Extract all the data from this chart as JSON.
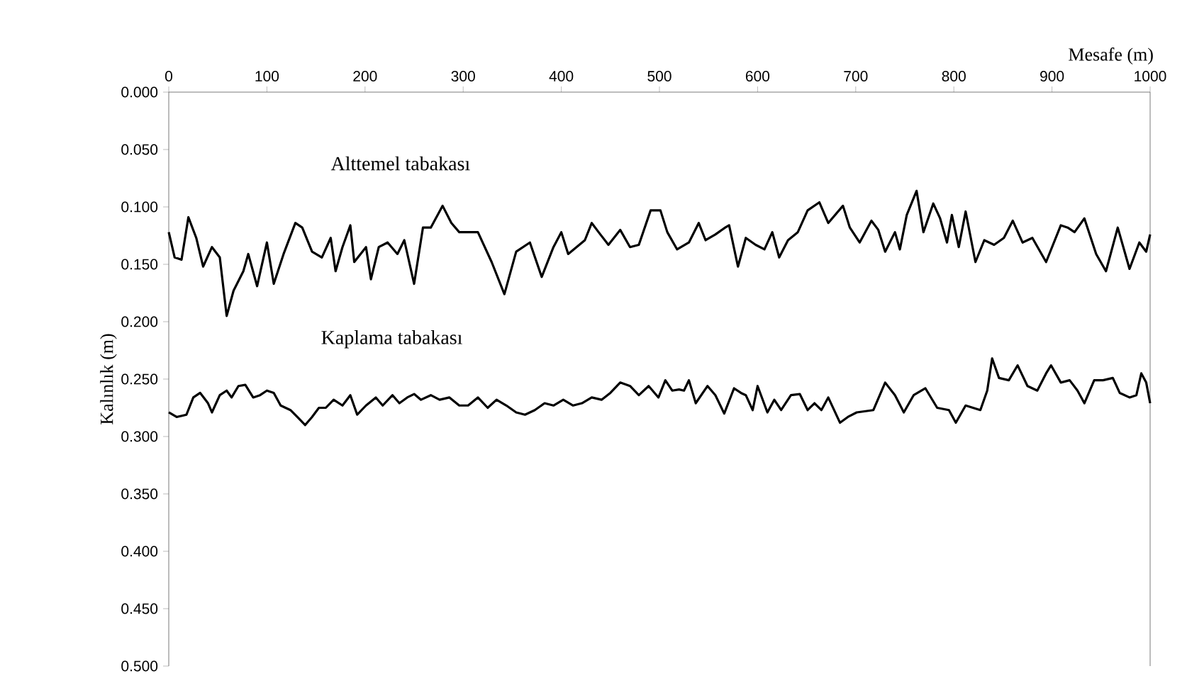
{
  "chart_data": {
    "type": "line",
    "xlabel": "Mesafe (m)",
    "ylabel": "Kalınlık (m)",
    "xlim": [
      0,
      1000
    ],
    "xticks": [
      0,
      100,
      200,
      300,
      400,
      500,
      600,
      700,
      800,
      900,
      1000
    ],
    "ylim": [
      0.5,
      0
    ],
    "yticks": [
      {
        "value": 0,
        "label": "0.000"
      },
      {
        "value": 0.05,
        "label": "0.050"
      },
      {
        "value": 0.1,
        "label": "0.100"
      },
      {
        "value": 0.15,
        "label": "0.150"
      },
      {
        "value": 0.2,
        "label": "0.200"
      },
      {
        "value": 0.25,
        "label": "0.250"
      },
      {
        "value": 0.3,
        "label": "0.300"
      },
      {
        "value": 0.35,
        "label": "0.350"
      },
      {
        "value": 0.4,
        "label": "0.400"
      },
      {
        "value": 0.45,
        "label": "0.450"
      },
      {
        "value": 0.5,
        "label": "0.500"
      }
    ],
    "grid": false,
    "legend": false,
    "marker": "none",
    "line_style": "solid",
    "series": [
      {
        "name": "Alttemel tabakası",
        "color": "#000000",
        "x": [
          0,
          6,
          13,
          20,
          28,
          35,
          44,
          52,
          59,
          66,
          76,
          81,
          90,
          100,
          107,
          117,
          129,
          136,
          146,
          156,
          165,
          170,
          177,
          185,
          189,
          201,
          206,
          214,
          223,
          233,
          240,
          250,
          259,
          267,
          279,
          288,
          296,
          315,
          329,
          342,
          354,
          368,
          380,
          392,
          400,
          407,
          424,
          431,
          438,
          448,
          460,
          470,
          479,
          491,
          501,
          508,
          518,
          530,
          540,
          547,
          557,
          567,
          571,
          580,
          588,
          598,
          607,
          615,
          622,
          631,
          641,
          651,
          663,
          672,
          687,
          694,
          704,
          716,
          723,
          730,
          740,
          745,
          752,
          762,
          769,
          779,
          786,
          793,
          798,
          805,
          812,
          822,
          831,
          841,
          851,
          860,
          870,
          880,
          894,
          909,
          916,
          923,
          933,
          945,
          955,
          967,
          979,
          989,
          996,
          1000
        ],
        "values": [
          0.122,
          0.144,
          0.146,
          0.109,
          0.127,
          0.152,
          0.135,
          0.144,
          0.195,
          0.173,
          0.156,
          0.141,
          0.169,
          0.131,
          0.167,
          0.141,
          0.114,
          0.118,
          0.139,
          0.144,
          0.127,
          0.156,
          0.135,
          0.116,
          0.148,
          0.135,
          0.163,
          0.135,
          0.131,
          0.141,
          0.129,
          0.167,
          0.118,
          0.118,
          0.099,
          0.114,
          0.122,
          0.122,
          0.148,
          0.176,
          0.139,
          0.131,
          0.161,
          0.135,
          0.122,
          0.141,
          0.129,
          0.114,
          0.122,
          0.133,
          0.12,
          0.135,
          0.133,
          0.103,
          0.103,
          0.122,
          0.137,
          0.131,
          0.114,
          0.129,
          0.124,
          0.118,
          0.116,
          0.152,
          0.127,
          0.133,
          0.137,
          0.122,
          0.144,
          0.129,
          0.122,
          0.103,
          0.096,
          0.114,
          0.099,
          0.118,
          0.131,
          0.112,
          0.12,
          0.139,
          0.122,
          0.137,
          0.107,
          0.086,
          0.122,
          0.097,
          0.11,
          0.131,
          0.107,
          0.135,
          0.104,
          0.148,
          0.129,
          0.133,
          0.127,
          0.112,
          0.131,
          0.127,
          0.148,
          0.116,
          0.118,
          0.122,
          0.11,
          0.141,
          0.156,
          0.118,
          0.154,
          0.131,
          0.139,
          0.124
        ]
      },
      {
        "name": "Kaplama tabakası",
        "color": "#000000",
        "x": [
          0,
          8,
          18,
          25,
          32,
          40,
          44,
          52,
          59,
          64,
          71,
          78,
          86,
          93,
          100,
          107,
          114,
          124,
          131,
          139,
          146,
          153,
          160,
          168,
          177,
          185,
          192,
          201,
          211,
          218,
          228,
          235,
          243,
          250,
          257,
          267,
          276,
          286,
          296,
          305,
          315,
          325,
          334,
          344,
          354,
          363,
          373,
          383,
          392,
          402,
          412,
          421,
          431,
          441,
          450,
          460,
          470,
          479,
          489,
          499,
          506,
          513,
          520,
          525,
          530,
          537,
          549,
          557,
          566,
          576,
          583,
          588,
          595,
          600,
          610,
          617,
          624,
          634,
          643,
          651,
          658,
          665,
          672,
          684,
          692,
          701,
          718,
          730,
          740,
          749,
          759,
          771,
          783,
          795,
          802,
          812,
          827,
          834,
          839,
          846,
          856,
          865,
          875,
          885,
          894,
          899,
          909,
          918,
          926,
          933,
          943,
          952,
          962,
          969,
          979,
          986,
          991,
          996,
          1000
        ],
        "values": [
          0.279,
          0.283,
          0.281,
          0.266,
          0.262,
          0.271,
          0.279,
          0.264,
          0.26,
          0.266,
          0.256,
          0.255,
          0.266,
          0.264,
          0.26,
          0.262,
          0.273,
          0.277,
          0.283,
          0.29,
          0.283,
          0.275,
          0.275,
          0.268,
          0.273,
          0.264,
          0.281,
          0.273,
          0.266,
          0.273,
          0.264,
          0.271,
          0.266,
          0.263,
          0.268,
          0.264,
          0.268,
          0.266,
          0.273,
          0.273,
          0.266,
          0.275,
          0.268,
          0.273,
          0.279,
          0.281,
          0.277,
          0.271,
          0.273,
          0.268,
          0.273,
          0.271,
          0.266,
          0.268,
          0.262,
          0.253,
          0.256,
          0.264,
          0.256,
          0.266,
          0.251,
          0.26,
          0.259,
          0.26,
          0.251,
          0.271,
          0.256,
          0.264,
          0.28,
          0.258,
          0.262,
          0.264,
          0.277,
          0.256,
          0.279,
          0.268,
          0.277,
          0.264,
          0.263,
          0.277,
          0.271,
          0.277,
          0.266,
          0.288,
          0.283,
          0.279,
          0.277,
          0.253,
          0.264,
          0.279,
          0.264,
          0.258,
          0.275,
          0.277,
          0.288,
          0.273,
          0.277,
          0.26,
          0.232,
          0.249,
          0.251,
          0.238,
          0.256,
          0.26,
          0.245,
          0.238,
          0.253,
          0.251,
          0.26,
          0.271,
          0.251,
          0.251,
          0.249,
          0.262,
          0.266,
          0.264,
          0.245,
          0.253,
          0.271
        ]
      }
    ]
  }
}
